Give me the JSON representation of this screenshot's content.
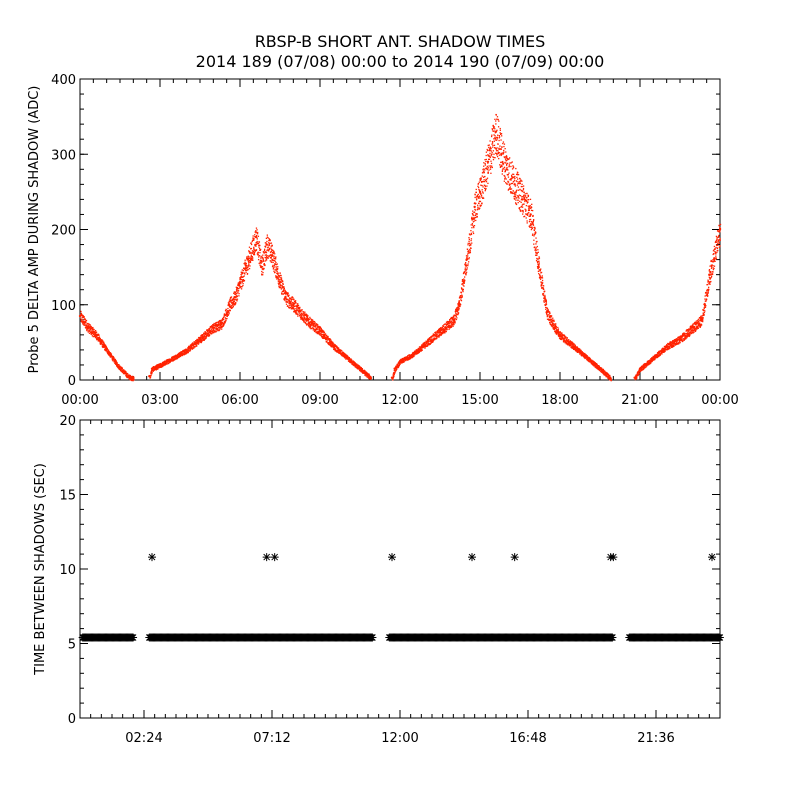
{
  "chart_data": [
    {
      "type": "scatter",
      "title": "RBSP-B SHORT ANT. SHADOW TIMES",
      "subtitle": "2014 189 (07/08) 00:00 to 2014 190 (07/09) 00:00",
      "xlabel": "",
      "ylabel": "Probe 5 DELTA AMP DURING SHADOW (ADC)",
      "x_unit": "hours",
      "xlim": [
        0,
        24
      ],
      "ylim": [
        0,
        400
      ],
      "x_ticks": [
        0,
        3,
        6,
        9,
        12,
        15,
        18,
        21,
        24
      ],
      "x_tick_labels": [
        "00:00",
        "03:00",
        "06:00",
        "09:00",
        "12:00",
        "15:00",
        "18:00",
        "21:00",
        "00:00"
      ],
      "y_ticks": [
        0,
        100,
        200,
        300,
        400
      ],
      "y_tick_labels": [
        "0",
        "100",
        "200",
        "300",
        "400"
      ],
      "marker_color": "#ff2200",
      "series": [
        {
          "x": [
            0.0,
            0.3,
            0.6,
            1.0,
            1.4,
            1.8,
            2.0,
            2.6,
            2.7,
            3.0,
            3.5,
            4.0,
            4.5,
            5.0,
            5.3,
            5.6,
            5.8,
            6.0,
            6.3,
            6.6,
            6.8,
            7.0,
            7.2,
            7.5,
            7.7,
            8.0,
            8.5,
            9.0,
            9.5,
            10.0,
            10.5,
            10.9,
            11.7,
            11.8,
            12.0,
            12.5,
            13.0,
            13.5,
            14.0,
            14.2,
            14.5,
            14.8,
            15.0,
            15.3,
            15.6,
            15.8,
            16.0,
            16.3,
            16.6,
            16.9,
            17.2,
            17.5,
            17.8,
            18.0,
            18.5,
            19.0,
            19.5,
            19.9,
            20.8,
            21.0,
            21.5,
            22.0,
            22.5,
            23.0,
            23.3,
            23.6,
            24.0
          ],
          "y": [
            85,
            70,
            60,
            40,
            20,
            5,
            2,
            5,
            15,
            20,
            30,
            40,
            55,
            70,
            75,
            100,
            110,
            130,
            160,
            190,
            150,
            180,
            165,
            130,
            110,
            100,
            80,
            65,
            45,
            30,
            15,
            3,
            3,
            15,
            25,
            35,
            50,
            65,
            80,
            100,
            160,
            230,
            250,
            290,
            330,
            300,
            280,
            260,
            240,
            220,
            150,
            90,
            70,
            60,
            45,
            30,
            15,
            2,
            3,
            15,
            30,
            45,
            55,
            70,
            80,
            140,
            200
          ]
        }
      ]
    },
    {
      "type": "scatter",
      "title": "",
      "xlabel": "",
      "ylabel": "TIME BETWEEN SHADOWS (SEC)",
      "x_unit": "hours",
      "xlim": [
        0,
        24
      ],
      "ylim": [
        0,
        20
      ],
      "x_ticks": [
        2.4,
        7.2,
        12.0,
        16.8,
        21.6
      ],
      "x_tick_labels": [
        "02:24",
        "07:12",
        "12:00",
        "16:48",
        "21:36"
      ],
      "y_ticks": [
        0,
        5,
        10,
        15,
        20
      ],
      "y_tick_labels": [
        "0",
        "5",
        "10",
        "15",
        "20"
      ],
      "marker": "*",
      "marker_color": "#000000",
      "band_value": 5.4,
      "band_segments": [
        [
          0.1,
          2.0
        ],
        [
          2.6,
          11.0
        ],
        [
          11.6,
          20.0
        ],
        [
          20.6,
          24.0
        ]
      ],
      "series": [
        {
          "x": [
            2.7,
            7.0,
            7.3,
            11.7,
            14.7,
            16.3,
            19.9,
            20.0,
            23.7
          ],
          "y": [
            10.8,
            10.8,
            10.8,
            10.8,
            10.8,
            10.8,
            10.8,
            10.8,
            10.8
          ]
        }
      ]
    }
  ]
}
